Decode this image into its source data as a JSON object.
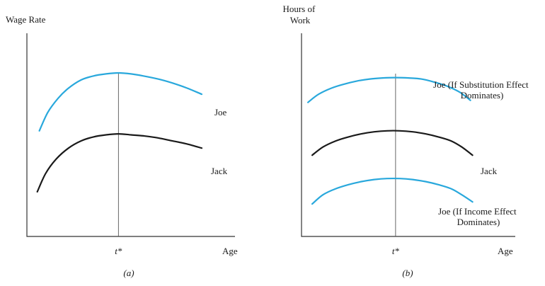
{
  "colors": {
    "blue": "#29a8dc",
    "black": "#1a1a1a"
  },
  "chart_data": [
    {
      "type": "line",
      "panel_label": "(a)",
      "ylabel": "Wage Rate",
      "xlabel": "Age",
      "marker_label": "t*",
      "marker_x": 0.44,
      "xlim": [
        0,
        1
      ],
      "ylim": [
        0,
        1
      ],
      "series": [
        {
          "name": "Joe",
          "color": "#29a8dc",
          "x": [
            0.06,
            0.1,
            0.15,
            0.2,
            0.26,
            0.32,
            0.38,
            0.44,
            0.5,
            0.56,
            0.63,
            0.7,
            0.77,
            0.84
          ],
          "y": [
            0.52,
            0.61,
            0.68,
            0.73,
            0.77,
            0.79,
            0.8,
            0.805,
            0.8,
            0.79,
            0.775,
            0.755,
            0.73,
            0.7
          ]
        },
        {
          "name": "Jack",
          "color": "#1a1a1a",
          "x": [
            0.05,
            0.09,
            0.14,
            0.2,
            0.26,
            0.32,
            0.38,
            0.44,
            0.5,
            0.56,
            0.63,
            0.7,
            0.77,
            0.84
          ],
          "y": [
            0.22,
            0.31,
            0.38,
            0.435,
            0.47,
            0.49,
            0.5,
            0.505,
            0.5,
            0.495,
            0.485,
            0.47,
            0.455,
            0.435
          ]
        }
      ]
    },
    {
      "type": "line",
      "panel_label": "(b)",
      "ylabel": "Hours of Work",
      "xlabel": "Age",
      "marker_label": "t*",
      "marker_x": 0.44,
      "xlim": [
        0,
        1
      ],
      "ylim": [
        0,
        1
      ],
      "series": [
        {
          "name": "Joe (If Substitution Effect Dominates)",
          "color": "#29a8dc",
          "x": [
            0.03,
            0.08,
            0.14,
            0.2,
            0.26,
            0.32,
            0.38,
            0.44,
            0.5,
            0.56,
            0.62,
            0.68,
            0.74,
            0.79
          ],
          "y": [
            0.66,
            0.7,
            0.73,
            0.75,
            0.765,
            0.775,
            0.78,
            0.782,
            0.78,
            0.775,
            0.76,
            0.74,
            0.71,
            0.67
          ]
        },
        {
          "name": "Jack",
          "color": "#1a1a1a",
          "x": [
            0.05,
            0.1,
            0.16,
            0.22,
            0.28,
            0.34,
            0.4,
            0.46,
            0.52,
            0.58,
            0.64,
            0.7,
            0.75,
            0.8
          ],
          "y": [
            0.4,
            0.44,
            0.47,
            0.49,
            0.505,
            0.515,
            0.52,
            0.52,
            0.515,
            0.505,
            0.49,
            0.47,
            0.44,
            0.4
          ]
        },
        {
          "name": "Joe (If Income Effect Dominates)",
          "color": "#29a8dc",
          "x": [
            0.05,
            0.1,
            0.16,
            0.22,
            0.28,
            0.34,
            0.4,
            0.46,
            0.52,
            0.58,
            0.64,
            0.7,
            0.75,
            0.8
          ],
          "y": [
            0.16,
            0.205,
            0.235,
            0.255,
            0.27,
            0.28,
            0.285,
            0.285,
            0.28,
            0.27,
            0.255,
            0.235,
            0.205,
            0.17
          ]
        }
      ]
    }
  ]
}
